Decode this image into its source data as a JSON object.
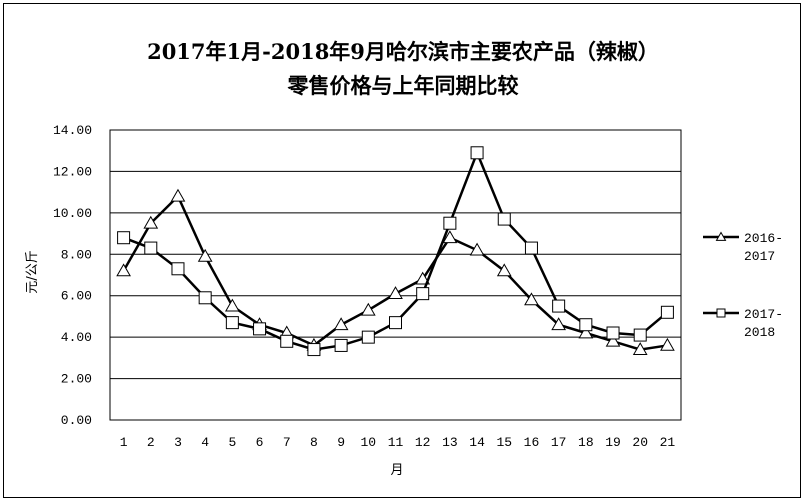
{
  "chart_data": {
    "type": "line",
    "title_line1": "2017年1月-2018年9月哈尔滨市主要农产品（辣椒）",
    "title_line2": "零售价格与上年同期比较",
    "xlabel": "月",
    "ylabel": "元/公斤",
    "ylim": [
      0,
      14
    ],
    "yticks": [
      "0.00",
      "2.00",
      "4.00",
      "6.00",
      "8.00",
      "10.00",
      "12.00",
      "14.00"
    ],
    "categories": [
      "1",
      "2",
      "3",
      "4",
      "5",
      "6",
      "7",
      "8",
      "9",
      "10",
      "11",
      "12",
      "13",
      "14",
      "15",
      "16",
      "17",
      "18",
      "19",
      "20",
      "21"
    ],
    "grid": "horizontal",
    "legend_position": "right",
    "series": [
      {
        "name_line1": "2016-",
        "name_line2": "2017",
        "marker": "triangle",
        "values": [
          7.2,
          9.5,
          10.8,
          7.9,
          5.5,
          4.6,
          4.2,
          3.6,
          4.6,
          5.3,
          6.1,
          6.8,
          8.8,
          8.2,
          7.2,
          5.8,
          4.6,
          4.2,
          3.8,
          3.4,
          3.6
        ]
      },
      {
        "name_line1": "2017-",
        "name_line2": "2018",
        "marker": "square",
        "values": [
          8.8,
          8.3,
          7.3,
          5.9,
          4.7,
          4.4,
          3.8,
          3.4,
          3.6,
          4.0,
          4.7,
          6.1,
          9.5,
          12.9,
          9.7,
          8.3,
          5.5,
          4.6,
          4.2,
          4.1,
          5.2
        ]
      }
    ]
  }
}
